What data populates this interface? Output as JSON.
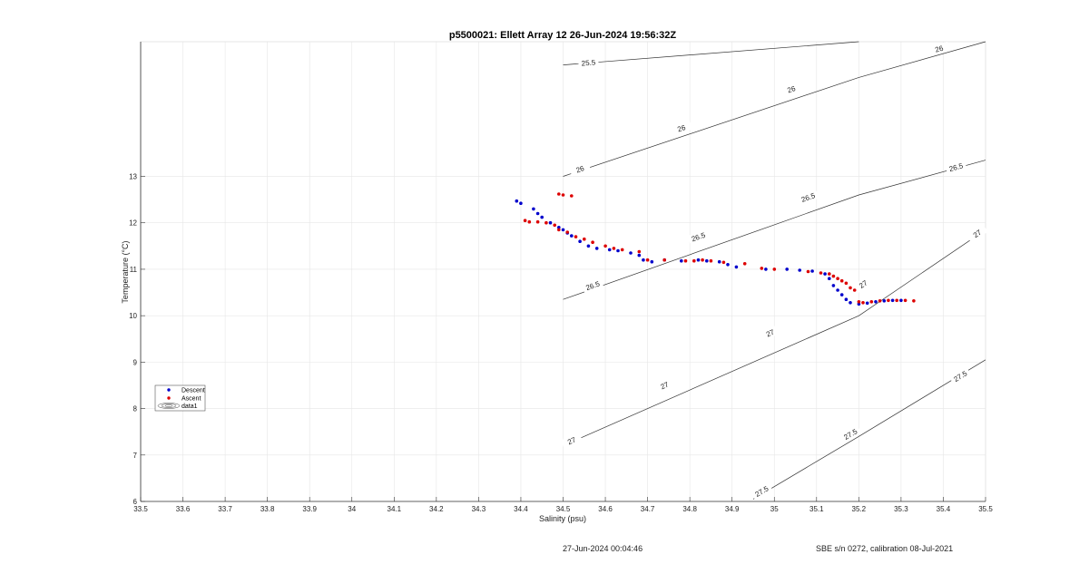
{
  "chart_data": {
    "type": "scatter",
    "title": "p5500021: Ellett Array 12 26-Jun-2024 19:56:32Z",
    "xlabel": "Salinity (psu)",
    "ylabel": "Temperature (°C)",
    "xlim": [
      33.5,
      35.5
    ],
    "ylim": [
      6,
      15.9
    ],
    "grid": true,
    "legend_placement": "left",
    "x_ticks": [
      "33.5",
      "33.6",
      "33.7",
      "33.8",
      "33.9",
      "34",
      "34.1",
      "34.2",
      "34.3",
      "34.4",
      "34.5",
      "34.6",
      "34.7",
      "34.8",
      "34.9",
      "35",
      "35.1",
      "35.2",
      "35.3",
      "35.4",
      "35.5"
    ],
    "y_ticks": [
      "6",
      "7",
      "8",
      "9",
      "10",
      "11",
      "12",
      "13"
    ],
    "series": [
      {
        "name": "Descent",
        "color": "#0000cc",
        "points": [
          [
            34.39,
            12.47
          ],
          [
            34.4,
            12.42
          ],
          [
            34.43,
            12.3
          ],
          [
            34.44,
            12.2
          ],
          [
            34.45,
            12.12
          ],
          [
            34.47,
            12.0
          ],
          [
            34.49,
            11.9
          ],
          [
            34.5,
            11.85
          ],
          [
            34.51,
            11.78
          ],
          [
            34.52,
            11.72
          ],
          [
            34.54,
            11.6
          ],
          [
            34.56,
            11.5
          ],
          [
            34.58,
            11.45
          ],
          [
            34.61,
            11.42
          ],
          [
            34.63,
            11.4
          ],
          [
            34.66,
            11.35
          ],
          [
            34.68,
            11.3
          ],
          [
            34.69,
            11.2
          ],
          [
            34.71,
            11.16
          ],
          [
            34.74,
            11.2
          ],
          [
            34.78,
            11.18
          ],
          [
            34.82,
            11.2
          ],
          [
            34.84,
            11.18
          ],
          [
            34.87,
            11.16
          ],
          [
            34.89,
            11.1
          ],
          [
            34.91,
            11.05
          ],
          [
            34.98,
            11.0
          ],
          [
            35.03,
            11.0
          ],
          [
            35.06,
            10.98
          ],
          [
            35.09,
            10.96
          ],
          [
            35.12,
            10.9
          ],
          [
            35.13,
            10.8
          ],
          [
            35.14,
            10.65
          ],
          [
            35.15,
            10.55
          ],
          [
            35.16,
            10.45
          ],
          [
            35.17,
            10.35
          ],
          [
            35.18,
            10.28
          ],
          [
            35.2,
            10.25
          ],
          [
            35.22,
            10.27
          ],
          [
            35.24,
            10.3
          ],
          [
            35.26,
            10.32
          ],
          [
            35.28,
            10.33
          ],
          [
            35.3,
            10.33
          ]
        ]
      },
      {
        "name": "Ascent",
        "color": "#dd0000",
        "points": [
          [
            34.49,
            12.62
          ],
          [
            34.5,
            12.6
          ],
          [
            34.52,
            12.58
          ],
          [
            34.41,
            12.05
          ],
          [
            34.42,
            12.02
          ],
          [
            34.44,
            12.02
          ],
          [
            34.46,
            12.0
          ],
          [
            34.48,
            11.95
          ],
          [
            34.49,
            11.85
          ],
          [
            34.51,
            11.8
          ],
          [
            34.53,
            11.7
          ],
          [
            34.55,
            11.65
          ],
          [
            34.57,
            11.58
          ],
          [
            34.6,
            11.5
          ],
          [
            34.62,
            11.45
          ],
          [
            34.64,
            11.42
          ],
          [
            34.68,
            11.38
          ],
          [
            34.7,
            11.2
          ],
          [
            34.74,
            11.2
          ],
          [
            34.79,
            11.18
          ],
          [
            34.81,
            11.18
          ],
          [
            34.83,
            11.2
          ],
          [
            34.85,
            11.18
          ],
          [
            34.88,
            11.15
          ],
          [
            34.93,
            11.12
          ],
          [
            34.97,
            11.02
          ],
          [
            35.0,
            11.0
          ],
          [
            35.08,
            10.95
          ],
          [
            35.11,
            10.92
          ],
          [
            35.13,
            10.9
          ],
          [
            35.14,
            10.85
          ],
          [
            35.15,
            10.8
          ],
          [
            35.16,
            10.75
          ],
          [
            35.17,
            10.7
          ],
          [
            35.18,
            10.6
          ],
          [
            35.19,
            10.55
          ],
          [
            35.2,
            10.3
          ],
          [
            35.21,
            10.28
          ],
          [
            35.23,
            10.3
          ],
          [
            35.25,
            10.32
          ],
          [
            35.27,
            10.33
          ],
          [
            35.29,
            10.33
          ],
          [
            35.31,
            10.33
          ],
          [
            35.33,
            10.32
          ]
        ]
      }
    ],
    "contours": [
      {
        "label": "25.5",
        "points": [
          [
            34.5,
            15.4
          ],
          [
            35.2,
            15.9
          ]
        ],
        "labels_at": [
          [
            34.56,
            15.45
          ]
        ]
      },
      {
        "label": "26",
        "points": [
          [
            34.5,
            13.0
          ],
          [
            35.2,
            15.13
          ],
          [
            35.5,
            15.9
          ]
        ],
        "labels_at": [
          [
            34.54,
            13.16
          ],
          [
            34.78,
            14.04
          ],
          [
            35.04,
            14.88
          ],
          [
            35.39,
            15.75
          ]
        ]
      },
      {
        "label": "26.5",
        "points": [
          [
            34.5,
            10.35
          ],
          [
            35.2,
            12.6
          ],
          [
            35.5,
            13.35
          ]
        ],
        "labels_at": [
          [
            34.57,
            10.65
          ],
          [
            34.82,
            11.7
          ],
          [
            35.08,
            12.55
          ],
          [
            35.43,
            13.2
          ]
        ]
      },
      {
        "label": "27",
        "points": [
          [
            34.5,
            7.2
          ],
          [
            35.2,
            10.0
          ],
          [
            35.5,
            11.85
          ]
        ],
        "labels_at": [
          [
            34.52,
            7.31
          ],
          [
            34.74,
            8.5
          ],
          [
            34.99,
            9.63
          ],
          [
            35.21,
            10.68
          ],
          [
            35.48,
            11.77
          ]
        ]
      },
      {
        "label": "27.5",
        "points": [
          [
            34.95,
            6.05
          ],
          [
            35.2,
            7.4
          ],
          [
            35.5,
            9.05
          ]
        ],
        "labels_at": [
          [
            34.97,
            6.22
          ],
          [
            35.18,
            7.45
          ],
          [
            35.44,
            8.7
          ]
        ]
      }
    ]
  },
  "legend": [
    {
      "label": "Descent",
      "marker": "dot",
      "color": "#0000cc"
    },
    {
      "label": "Ascent",
      "marker": "dot",
      "color": "#dd0000"
    },
    {
      "label": "data1",
      "marker": "contour",
      "color": "#444444"
    }
  ],
  "footer": {
    "left": "27-Jun-2024 00:04:46",
    "right": "SBE s/n 0272, calibration 08-Jul-2021"
  }
}
